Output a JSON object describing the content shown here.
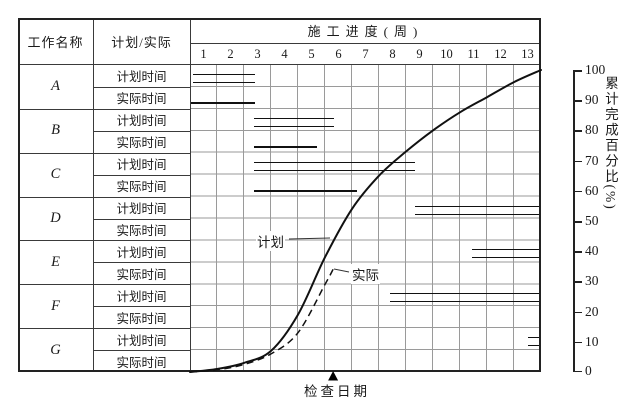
{
  "table": {
    "col_work_header": "工作名称",
    "col_type_header": "计划/实际",
    "progress_header": "施工进度(周)",
    "week_labels": [
      "1",
      "2",
      "3",
      "4",
      "5",
      "6",
      "7",
      "8",
      "9",
      "10",
      "11",
      "12",
      "13"
    ],
    "type_labels": {
      "plan": "计划时间",
      "actual": "实际时间"
    },
    "works": [
      "A",
      "B",
      "C",
      "D",
      "E",
      "F",
      "G"
    ]
  },
  "axis": {
    "label": "累计完成百分比(%)",
    "ticks": [
      "100",
      "90",
      "80",
      "70",
      "60",
      "50",
      "40",
      "30",
      "20",
      "10",
      "0"
    ]
  },
  "annotations": {
    "plan_curve_label": "计划",
    "actual_curve_label": "实际",
    "check_date_label": "检查日期"
  },
  "chart_data": {
    "type": "gantt+line",
    "title": "施工进度(周)",
    "x_axis": {
      "label": "施工进度(周)",
      "weeks": [
        1,
        2,
        3,
        4,
        5,
        6,
        7,
        8,
        9,
        10,
        11,
        12,
        13
      ]
    },
    "y_axis": {
      "label": "累计完成百分比(%)",
      "min": 0,
      "max": 100,
      "step": 10
    },
    "tasks": [
      {
        "name": "A",
        "planned_weeks": [
          0.1,
          2.4
        ],
        "actual_weeks": [
          0,
          2.4
        ]
      },
      {
        "name": "B",
        "planned_weeks": [
          2.36,
          5.33
        ],
        "actual_weeks": [
          2.36,
          4.72
        ]
      },
      {
        "name": "C",
        "planned_weeks": [
          2.36,
          8.33
        ],
        "actual_weeks": [
          2.36,
          6.2
        ]
      },
      {
        "name": "D",
        "planned_weeks": [
          8.35,
          13
        ],
        "actual_weeks": null
      },
      {
        "name": "E",
        "planned_weeks": [
          10.45,
          13
        ],
        "actual_weeks": null
      },
      {
        "name": "F",
        "planned_weeks": [
          7.4,
          13
        ],
        "actual_weeks": null
      },
      {
        "name": "G",
        "planned_weeks": [
          12.5,
          13
        ],
        "actual_weeks": null
      }
    ],
    "curves": {
      "plan": {
        "label": "计划",
        "style": "solid",
        "points_week_pct": [
          [
            0,
            0
          ],
          [
            1,
            1
          ],
          [
            2,
            3
          ],
          [
            3,
            7
          ],
          [
            4,
            19
          ],
          [
            5,
            38
          ],
          [
            6,
            54
          ],
          [
            7,
            65
          ],
          [
            8,
            73
          ],
          [
            9,
            80
          ],
          [
            10,
            86
          ],
          [
            11,
            91
          ],
          [
            12,
            96
          ],
          [
            13,
            100
          ]
        ]
      },
      "actual": {
        "label": "实际",
        "style": "dashed",
        "points_week_pct": [
          [
            0,
            0
          ],
          [
            1,
            0.7
          ],
          [
            2,
            2.5
          ],
          [
            3,
            6
          ],
          [
            4,
            13
          ],
          [
            5,
            29
          ],
          [
            5.3,
            34
          ]
        ]
      }
    },
    "check_date_week": 5.3,
    "bar_legend": {
      "double_line": "计划时间",
      "single_line": "实际时间"
    }
  }
}
